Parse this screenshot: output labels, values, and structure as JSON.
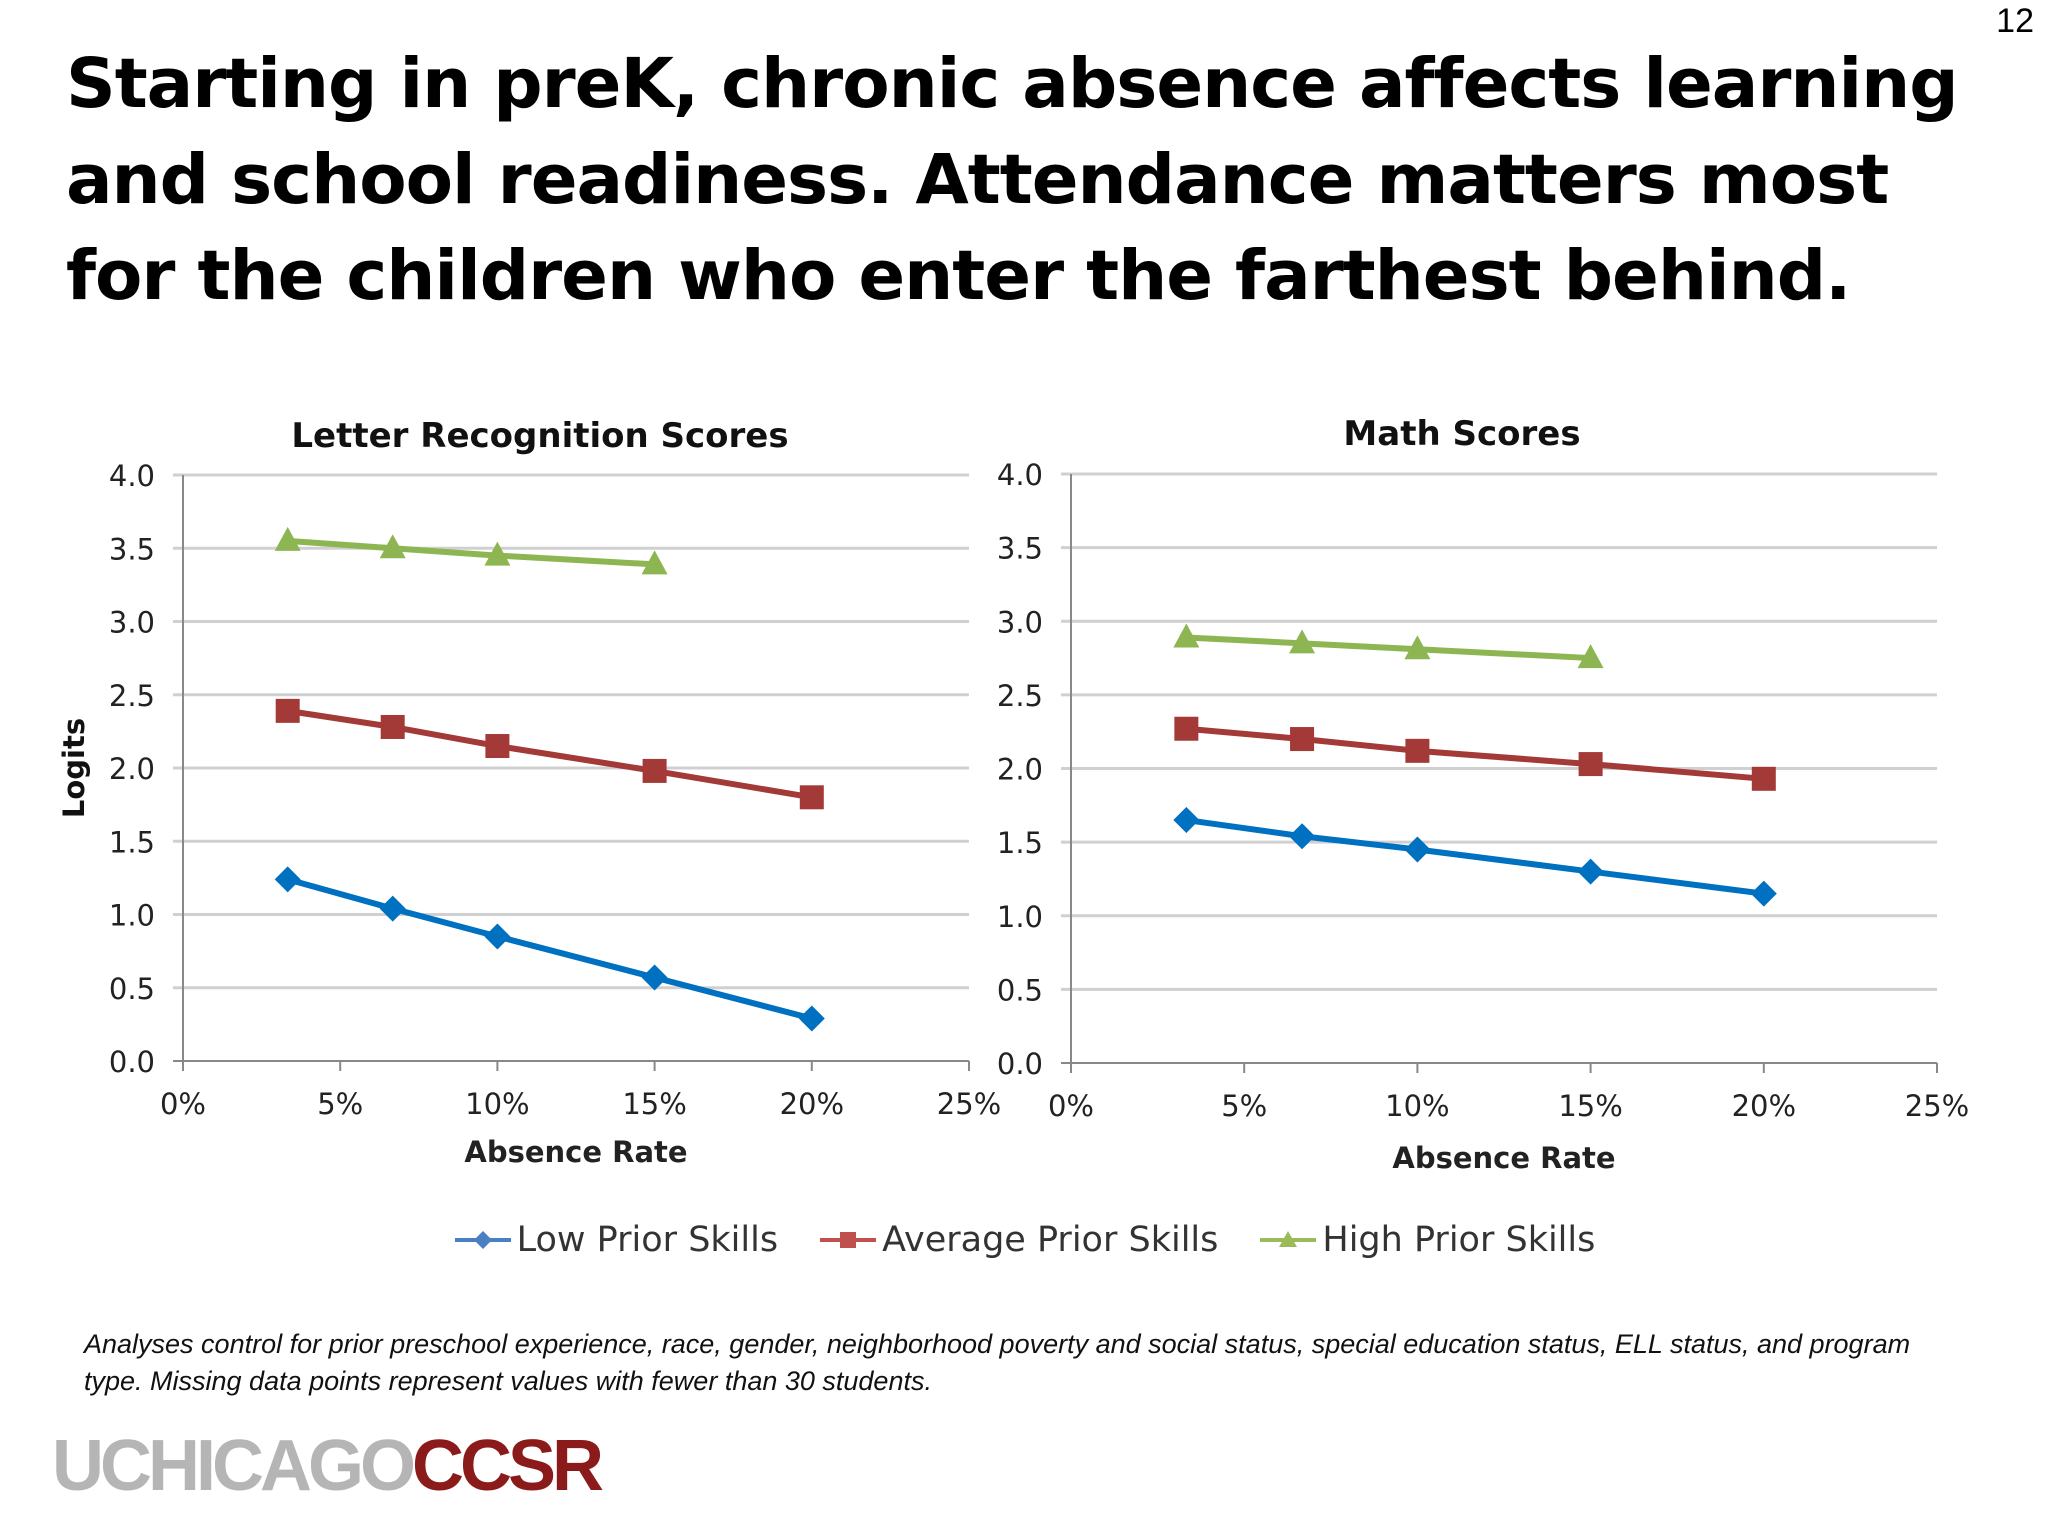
{
  "page_number": "12",
  "title": "Starting in preK, chronic absence affects learning and school readiness.  Attendance matters most for the children who enter the farthest behind.",
  "footnote": "Analyses control for prior preschool experience, race, gender, neighborhood poverty and social status,  special education status, ELL status, and program type. Missing data points represent values with fewer than 30 students.",
  "logo": {
    "part1": "UCHICAGO",
    "part2": "CCSR"
  },
  "legend": [
    {
      "name": "Low Prior Skills",
      "color": "#0070c0",
      "marker": "diamond"
    },
    {
      "name": "Average Prior Skills",
      "color": "#a33a37",
      "marker": "square"
    },
    {
      "name": "High Prior Skills",
      "color": "#8db652",
      "marker": "triangle"
    }
  ],
  "chart_data": [
    {
      "type": "line",
      "title": "Letter Recognition Scores",
      "xlabel": "Absence Rate",
      "ylabel": "Logits",
      "xlim": [
        0,
        25
      ],
      "ylim": [
        0,
        4
      ],
      "xticks": [
        "0%",
        "5%",
        "10%",
        "15%",
        "20%",
        "25%"
      ],
      "yticks": [
        "0.0",
        "0.5",
        "1.0",
        "1.5",
        "2.0",
        "2.5",
        "3.0",
        "3.5",
        "4.0"
      ],
      "grid": true,
      "legend": "bottom",
      "series": [
        {
          "name": "Low Prior Skills",
          "x": [
            3.33,
            6.67,
            10,
            15,
            20
          ],
          "values": [
            1.24,
            1.04,
            0.85,
            0.57,
            0.29
          ]
        },
        {
          "name": "Average Prior Skills",
          "x": [
            3.33,
            6.67,
            10,
            15,
            20
          ],
          "values": [
            2.39,
            2.28,
            2.15,
            1.98,
            1.8
          ]
        },
        {
          "name": "High Prior Skills",
          "x": [
            3.33,
            6.67,
            10,
            15
          ],
          "values": [
            3.55,
            3.5,
            3.45,
            3.39
          ]
        }
      ]
    },
    {
      "type": "line",
      "title": "Math Scores",
      "xlabel": "Absence Rate",
      "ylabel": "",
      "xlim": [
        0,
        25
      ],
      "ylim": [
        0,
        4
      ],
      "xticks": [
        "0%",
        "5%",
        "10%",
        "15%",
        "20%",
        "25%"
      ],
      "yticks": [
        "0.0",
        "0.5",
        "1.0",
        "1.5",
        "2.0",
        "2.5",
        "3.0",
        "3.5",
        "4.0"
      ],
      "grid": true,
      "legend": "bottom",
      "series": [
        {
          "name": "Low Prior Skills",
          "x": [
            3.33,
            6.67,
            10,
            15,
            20
          ],
          "values": [
            1.65,
            1.54,
            1.45,
            1.3,
            1.15
          ]
        },
        {
          "name": "Average Prior Skills",
          "x": [
            3.33,
            6.67,
            10,
            15,
            20
          ],
          "values": [
            2.27,
            2.2,
            2.12,
            2.03,
            1.93
          ]
        },
        {
          "name": "High Prior Skills",
          "x": [
            3.33,
            6.67,
            10,
            15
          ],
          "values": [
            2.89,
            2.85,
            2.81,
            2.75
          ]
        }
      ]
    }
  ]
}
